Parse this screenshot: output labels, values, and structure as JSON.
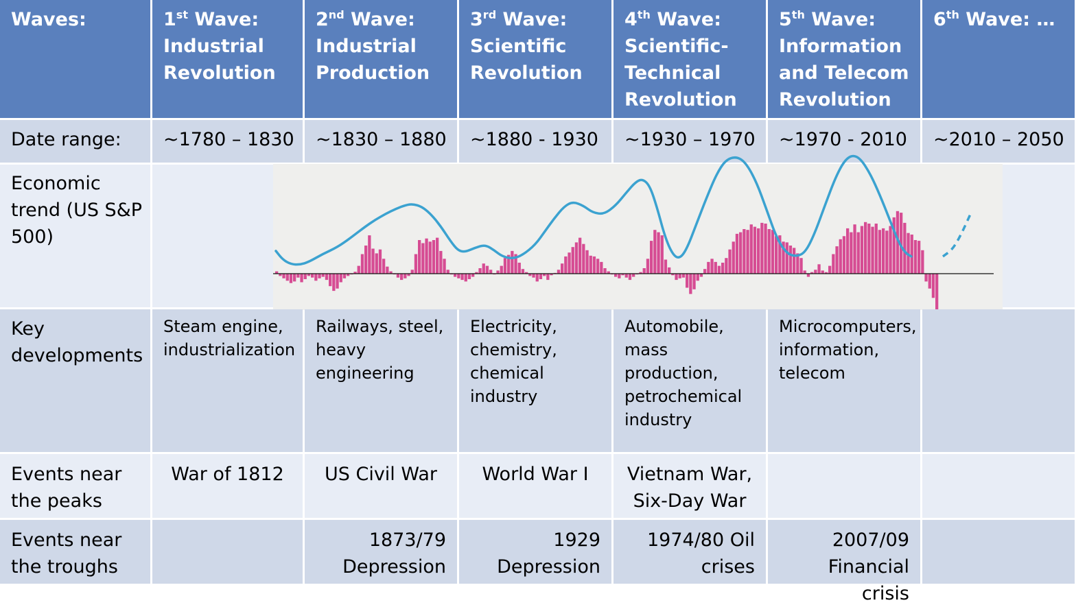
{
  "rows": {
    "waves": {
      "label": "Waves:",
      "cells": [
        {
          "num": "1",
          "sup": "st",
          "rest": "Wave:",
          "body": "Industrial Revolution"
        },
        {
          "num": "2",
          "sup": "nd",
          "rest": "Wave:",
          "body": "Industrial Production"
        },
        {
          "num": "3",
          "sup": "rd",
          "rest": "Wave:",
          "body": "Scientific Revolution"
        },
        {
          "num": "4",
          "sup": "th",
          "rest": "Wave:",
          "body": "Scientific-Technical Revolution"
        },
        {
          "num": "5",
          "sup": "th",
          "rest": "Wave:",
          "body": "Information and Telecom Revolution"
        },
        {
          "num": "6",
          "sup": "th",
          "rest": "Wave: …",
          "body": ""
        }
      ]
    },
    "dates": {
      "label": "Date range:",
      "cells": [
        "~1780 – 1830",
        "~1830 – 1880",
        "~1880 - 1930",
        "~1930 – 1970",
        "~1970 - 2010",
        "~2010 – 2050"
      ]
    },
    "trend": {
      "label": "Economic trend (US S&P 500)"
    },
    "developments": {
      "label": "Key developments",
      "cells": [
        "Steam engine, industrialization",
        "Railways, steel, heavy engineering",
        "Electricity, chemistry, chemical industry",
        "Automobile, mass production, petrochemical industry",
        "Microcomputers, information, telecom",
        ""
      ]
    },
    "peaks": {
      "label": "Events near the peaks",
      "cells": [
        "War of 1812",
        "US Civil War",
        "World War I",
        "Vietnam War, Six-Day War",
        "",
        ""
      ]
    },
    "troughs": {
      "label": "Events near the troughs",
      "cells": [
        "",
        "1873/79 Depression",
        "1929 Depression",
        "1974/80 Oil crises",
        "2007/09 Financial crisis",
        ""
      ]
    }
  },
  "colors": {
    "header_bg": "#5a80bd",
    "row_dark": "#cfd8e8",
    "row_light": "#e8edf6",
    "chart_bg": "#efefed",
    "bar_color": "#d64c93",
    "trend_line": "#3ba2d0"
  },
  "chart_data": {
    "type": "bar",
    "bars": {
      "name": "",
      "values": [
        0.06,
        -0.06,
        -0.12,
        -0.18,
        -0.24,
        -0.2,
        -0.1,
        -0.22,
        -0.14,
        -0.06,
        -0.1,
        -0.18,
        -0.12,
        -0.08,
        -0.16,
        -0.32,
        -0.44,
        -0.38,
        -0.22,
        -0.12,
        -0.06,
        -0.02,
        0.05,
        0.2,
        0.5,
        0.72,
        0.98,
        0.64,
        0.52,
        0.62,
        0.38,
        0.18,
        0.06,
        -0.02,
        -0.1,
        -0.16,
        -0.12,
        -0.06,
        0.1,
        0.5,
        0.86,
        0.78,
        0.9,
        0.82,
        0.86,
        0.92,
        0.58,
        0.38,
        0.1,
        -0.02,
        -0.08,
        -0.12,
        -0.16,
        -0.2,
        -0.14,
        -0.08,
        0.04,
        0.14,
        0.26,
        0.2,
        0.1,
        -0.02,
        0.08,
        0.2,
        0.4,
        0.48,
        0.58,
        0.5,
        0.28,
        0.12,
        0.04,
        -0.06,
        -0.1,
        -0.2,
        -0.14,
        -0.06,
        -0.16,
        -0.04,
        0.02,
        0.1,
        0.26,
        0.44,
        0.54,
        0.68,
        0.8,
        0.92,
        0.76,
        0.6,
        0.46,
        0.44,
        0.38,
        0.3,
        0.14,
        0.06,
        -0.02,
        -0.08,
        -0.12,
        -0.04,
        -0.1,
        -0.16,
        -0.08,
        -0.02,
        0.04,
        0.14,
        0.38,
        0.84,
        1.12,
        1.06,
        0.98,
        0.36,
        0.16,
        -0.04,
        -0.16,
        -0.12,
        -0.1,
        -0.36,
        -0.52,
        -0.4,
        -0.18,
        -0.08,
        0.12,
        0.3,
        0.38,
        0.3,
        0.2,
        0.28,
        0.4,
        0.62,
        0.82,
        1.02,
        1.06,
        1.14,
        1.12,
        1.26,
        1.2,
        1.16,
        1.3,
        1.28,
        1.14,
        1.12,
        0.96,
        0.98,
        0.82,
        0.8,
        0.72,
        0.66,
        0.52,
        0.4,
        0.08,
        -0.08,
        0.04,
        0.1,
        0.24,
        0.08,
        0.04,
        0.2,
        0.5,
        0.7,
        0.88,
        0.96,
        1.16,
        1.06,
        1.26,
        1.06,
        1.22,
        1.32,
        1.28,
        1.2,
        1.28,
        1.12,
        1.16,
        1.1,
        1.22,
        1.44,
        1.6,
        1.56,
        1.3,
        1.04,
        1.0,
        0.86,
        0.84,
        0.6,
        -0.2,
        -0.38,
        -0.62,
        -0.96
      ]
    },
    "trend": {
      "name": "",
      "solid": [
        [
          0,
          0.58
        ],
        [
          10,
          0.36
        ],
        [
          22,
          0.24
        ],
        [
          35,
          0.23
        ],
        [
          48,
          0.3
        ],
        [
          68,
          0.5
        ],
        [
          90,
          0.68
        ],
        [
          110,
          0.93
        ],
        [
          130,
          1.2
        ],
        [
          145,
          1.38
        ],
        [
          160,
          1.53
        ],
        [
          175,
          1.66
        ],
        [
          190,
          1.76
        ],
        [
          200,
          1.78
        ],
        [
          212,
          1.72
        ],
        [
          225,
          1.54
        ],
        [
          240,
          1.22
        ],
        [
          255,
          0.82
        ],
        [
          265,
          0.6
        ],
        [
          275,
          0.55
        ],
        [
          290,
          0.66
        ],
        [
          305,
          0.74
        ],
        [
          318,
          0.6
        ],
        [
          330,
          0.44
        ],
        [
          345,
          0.38
        ],
        [
          360,
          0.48
        ],
        [
          378,
          0.74
        ],
        [
          392,
          1.08
        ],
        [
          405,
          1.4
        ],
        [
          420,
          1.72
        ],
        [
          433,
          1.84
        ],
        [
          448,
          1.74
        ],
        [
          462,
          1.56
        ],
        [
          478,
          1.52
        ],
        [
          495,
          1.74
        ],
        [
          510,
          2.06
        ],
        [
          525,
          2.36
        ],
        [
          535,
          2.42
        ],
        [
          545,
          2.24
        ],
        [
          555,
          1.72
        ],
        [
          568,
          0.88
        ],
        [
          580,
          0.44
        ],
        [
          590,
          0.4
        ],
        [
          600,
          0.68
        ],
        [
          613,
          1.28
        ],
        [
          628,
          1.96
        ],
        [
          642,
          2.54
        ],
        [
          655,
          2.9
        ],
        [
          670,
          3.0
        ],
        [
          684,
          2.86
        ],
        [
          700,
          2.36
        ],
        [
          715,
          1.64
        ],
        [
          730,
          0.9
        ],
        [
          745,
          0.5
        ],
        [
          760,
          0.44
        ],
        [
          772,
          0.56
        ],
        [
          785,
          1.02
        ],
        [
          800,
          1.74
        ],
        [
          815,
          2.44
        ],
        [
          828,
          2.88
        ],
        [
          840,
          3.04
        ],
        [
          852,
          2.94
        ],
        [
          866,
          2.56
        ],
        [
          880,
          2.02
        ],
        [
          895,
          1.36
        ],
        [
          908,
          0.78
        ],
        [
          918,
          0.52
        ],
        [
          926,
          0.44
        ]
      ],
      "dashed": [
        [
          972,
          0.44
        ],
        [
          986,
          0.62
        ],
        [
          998,
          0.98
        ],
        [
          1012,
          1.52
        ]
      ]
    }
  }
}
